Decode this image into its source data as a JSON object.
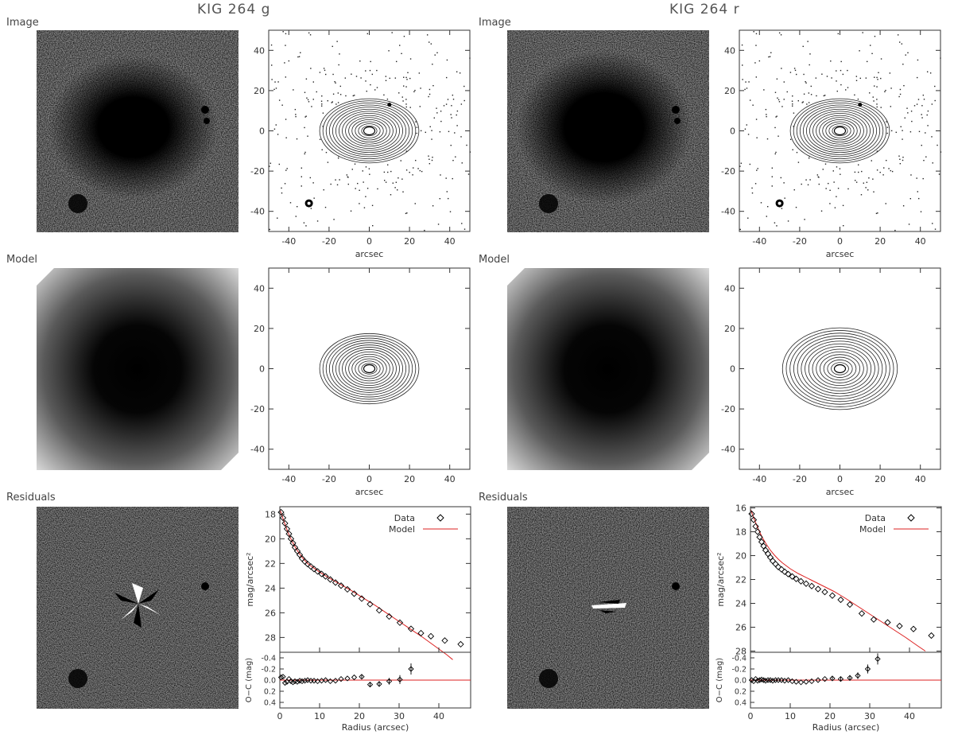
{
  "figure": {
    "panels": [
      {
        "title": "KIG 264 g",
        "row_labels": [
          "Image",
          "Model",
          "Residuals"
        ]
      },
      {
        "title": "KIG 264 r",
        "row_labels": [
          "Image",
          "Model",
          "Residuals"
        ]
      }
    ],
    "contour_axis": {
      "xlabel": "arcsec",
      "ticks": [
        "-40",
        "-20",
        "0",
        "20",
        "40"
      ],
      "yticks": [
        "40",
        "20",
        "0",
        "-20",
        "-40"
      ]
    },
    "colors": {
      "model_line": "#dd2222",
      "data_marker": "#000000",
      "background": "#ffffff"
    }
  },
  "chart_data": [
    {
      "type": "scatter",
      "band": "g",
      "ylabel": "mag/arcsec²",
      "xlabel": "Radius (arcsec)",
      "resid_ylabel": "O−C (mag)",
      "legend": [
        "Data",
        "Model"
      ],
      "legend_position": "top-right",
      "xlim": [
        0,
        48
      ],
      "ylim": [
        29.2,
        17.4
      ],
      "yticks": [
        "18",
        "20",
        "22",
        "24",
        "26",
        "28"
      ],
      "xticks": [
        "0",
        "10",
        "20",
        "30",
        "40"
      ],
      "resid_ylim": [
        0.5,
        -0.5
      ],
      "resid_yticks": [
        "-0.4",
        "-0.2",
        "0.0",
        "0.2",
        "0.4"
      ],
      "data": {
        "x": [
          0.3,
          0.8,
          1.3,
          1.8,
          2.3,
          2.8,
          3.3,
          3.8,
          4.4,
          5.0,
          5.6,
          6.3,
          7.0,
          7.8,
          8.6,
          9.5,
          10.5,
          11.5,
          12.7,
          14.0,
          15.4,
          17.0,
          18.7,
          20.6,
          22.7,
          25.0,
          27.5,
          30.2,
          33.0,
          35.5,
          38.0,
          41.5,
          45.5
        ],
        "y": [
          17.85,
          18.3,
          18.75,
          19.2,
          19.6,
          20.0,
          20.35,
          20.7,
          21.0,
          21.3,
          21.6,
          21.85,
          22.05,
          22.25,
          22.45,
          22.65,
          22.85,
          23.05,
          23.3,
          23.55,
          23.8,
          24.1,
          24.45,
          24.85,
          25.3,
          25.8,
          26.3,
          26.8,
          27.3,
          27.65,
          27.9,
          28.25,
          28.55
        ]
      },
      "model": {
        "x": [
          0,
          1,
          2,
          3,
          4,
          5,
          6,
          7,
          8,
          10,
          12,
          15,
          18,
          21,
          24,
          27,
          30,
          33,
          36,
          39,
          42,
          43.5
        ],
        "y": [
          17.6,
          18.55,
          19.45,
          20.15,
          20.75,
          21.25,
          21.65,
          22.0,
          22.25,
          22.7,
          23.1,
          23.65,
          24.2,
          24.8,
          25.4,
          26.05,
          26.7,
          27.35,
          28.0,
          28.7,
          29.4,
          29.8
        ]
      },
      "residuals": {
        "x": [
          0.3,
          0.8,
          1.3,
          1.8,
          2.3,
          2.8,
          3.3,
          3.8,
          4.4,
          5.0,
          5.6,
          6.3,
          7.0,
          7.8,
          8.6,
          9.5,
          10.5,
          11.5,
          12.7,
          14.0,
          15.4,
          17.0,
          18.7,
          20.6,
          22.7,
          25.0,
          27.5,
          30.2,
          33.0
        ],
        "y": [
          -0.05,
          -0.06,
          0.05,
          0.03,
          -0.02,
          0.02,
          0.04,
          0.02,
          0.03,
          0.01,
          0.02,
          0.01,
          0.0,
          0.01,
          0.01,
          0.02,
          0.01,
          0.0,
          0.02,
          0.01,
          -0.02,
          -0.03,
          -0.05,
          -0.06,
          0.08,
          0.07,
          0.02,
          -0.01,
          -0.2
        ],
        "err": [
          0.01,
          0.01,
          0.01,
          0.01,
          0.01,
          0.01,
          0.01,
          0.01,
          0.01,
          0.01,
          0.01,
          0.01,
          0.01,
          0.01,
          0.01,
          0.01,
          0.01,
          0.01,
          0.01,
          0.01,
          0.01,
          0.02,
          0.02,
          0.03,
          0.04,
          0.05,
          0.06,
          0.08,
          0.1
        ]
      }
    },
    {
      "type": "scatter",
      "band": "r",
      "ylabel": "mag/arcsec²",
      "xlabel": "Radius (arcsec)",
      "resid_ylabel": "O−C (mag)",
      "legend": [
        "Data",
        "Model"
      ],
      "legend_position": "top-right",
      "xlim": [
        0,
        48
      ],
      "ylim": [
        28.1,
        15.9
      ],
      "yticks": [
        "16",
        "18",
        "20",
        "22",
        "24",
        "26",
        "28"
      ],
      "xticks": [
        "0",
        "10",
        "20",
        "30",
        "40"
      ],
      "resid_ylim": [
        0.5,
        -0.5
      ],
      "resid_yticks": [
        "-0.4",
        "-0.2",
        "0.0",
        "0.2",
        "0.4"
      ],
      "data": {
        "x": [
          0.3,
          0.8,
          1.3,
          1.8,
          2.3,
          2.8,
          3.3,
          3.8,
          4.4,
          5.0,
          5.6,
          6.3,
          7.0,
          7.8,
          8.6,
          9.5,
          10.5,
          11.5,
          12.7,
          14.0,
          15.4,
          17.0,
          18.7,
          20.6,
          22.7,
          25.0,
          28.0,
          31.0,
          34.5,
          37.5,
          41.0,
          45.5
        ],
        "y": [
          16.5,
          17.0,
          17.55,
          18.0,
          18.45,
          18.85,
          19.2,
          19.55,
          19.85,
          20.15,
          20.45,
          20.7,
          20.95,
          21.15,
          21.35,
          21.55,
          21.75,
          21.95,
          22.15,
          22.35,
          22.55,
          22.8,
          23.05,
          23.35,
          23.7,
          24.1,
          24.85,
          25.35,
          25.6,
          25.9,
          26.15,
          26.7
        ]
      },
      "model": {
        "x": [
          0,
          1,
          2,
          3,
          4,
          5,
          6,
          7,
          8,
          10,
          12,
          15,
          18,
          21,
          24,
          27,
          30,
          33,
          36,
          39,
          42,
          44
        ],
        "y": [
          16.1,
          17.0,
          17.8,
          18.5,
          19.05,
          19.55,
          19.95,
          20.3,
          20.6,
          21.1,
          21.5,
          22.0,
          22.5,
          23.0,
          23.6,
          24.25,
          24.9,
          25.55,
          26.2,
          26.85,
          27.55,
          28.0
        ]
      },
      "residuals": {
        "x": [
          0.3,
          0.8,
          1.3,
          1.8,
          2.3,
          2.8,
          3.3,
          3.8,
          4.4,
          5.0,
          5.6,
          6.3,
          7.0,
          7.8,
          8.6,
          9.5,
          10.5,
          11.5,
          12.7,
          14.0,
          15.4,
          17.0,
          18.7,
          20.6,
          22.7,
          25.0,
          27.0,
          29.5,
          32.0
        ],
        "y": [
          0.0,
          0.02,
          -0.02,
          0.01,
          0.0,
          -0.01,
          0.0,
          0.01,
          0.0,
          0.0,
          0.01,
          0.0,
          0.0,
          0.0,
          0.01,
          0.0,
          0.02,
          0.03,
          0.04,
          0.03,
          0.02,
          0.0,
          -0.02,
          -0.03,
          -0.02,
          -0.04,
          -0.08,
          -0.2,
          -0.38
        ],
        "err": [
          0.01,
          0.01,
          0.01,
          0.01,
          0.01,
          0.01,
          0.01,
          0.01,
          0.01,
          0.01,
          0.01,
          0.01,
          0.01,
          0.01,
          0.01,
          0.01,
          0.01,
          0.01,
          0.01,
          0.01,
          0.01,
          0.02,
          0.02,
          0.03,
          0.04,
          0.05,
          0.06,
          0.08,
          0.1
        ]
      }
    }
  ]
}
